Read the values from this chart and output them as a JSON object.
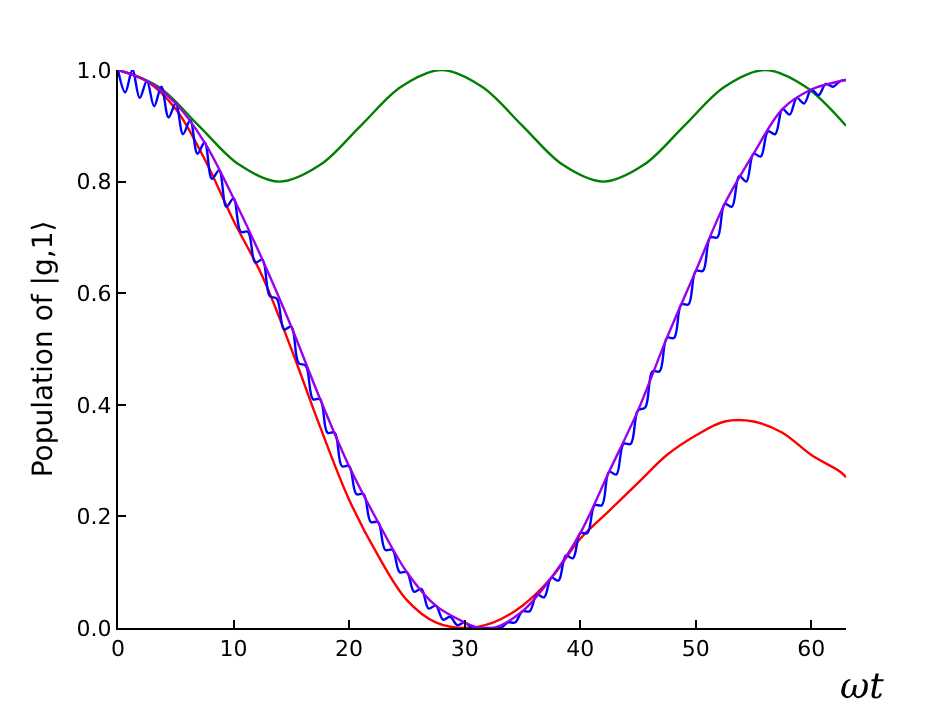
{
  "chart_data": {
    "type": "line",
    "xlabel": "ωt",
    "ylabel": "Population of |g,1⟩",
    "xlim": [
      0,
      63
    ],
    "ylim": [
      0,
      1
    ],
    "xticks": [
      0,
      10,
      20,
      30,
      40,
      50,
      60
    ],
    "yticks": [
      {
        "value": 0,
        "label": "0.0"
      },
      {
        "value": 0.2,
        "label": "0.2"
      },
      {
        "value": 0.4,
        "label": "0.4"
      },
      {
        "value": 0.6,
        "label": "0.6"
      },
      {
        "value": 0.8,
        "label": "0.8"
      },
      {
        "value": 1,
        "label": "1.0"
      }
    ],
    "grid": false,
    "marker": "none",
    "line_style": "solid",
    "series": [
      {
        "color": "#008000",
        "x": [
          0,
          3.5,
          7,
          10.5,
          14,
          17.5,
          21,
          24.5,
          28,
          31.5,
          35,
          38.5,
          42,
          45.5,
          49,
          52.5,
          56,
          59.5,
          63
        ],
        "values": [
          1.0,
          0.97,
          0.9,
          0.83,
          0.8,
          0.83,
          0.9,
          0.97,
          1.0,
          0.97,
          0.9,
          0.83,
          0.8,
          0.83,
          0.9,
          0.97,
          1.0,
          0.97,
          0.9
        ]
      },
      {
        "color": "#ff0000",
        "x": [
          0,
          2.5,
          5,
          7.5,
          10,
          12.5,
          15,
          17.5,
          20,
          22.5,
          25,
          27.5,
          30,
          32.5,
          35,
          37.5,
          40,
          42.5,
          45,
          47.5,
          50,
          52.5,
          55,
          57.5,
          60,
          62.5,
          63
        ],
        "values": [
          1.0,
          0.98,
          0.93,
          0.84,
          0.73,
          0.63,
          0.5,
          0.36,
          0.23,
          0.13,
          0.05,
          0.01,
          0.0,
          0.01,
          0.04,
          0.09,
          0.16,
          0.21,
          0.26,
          0.31,
          0.345,
          0.37,
          0.37,
          0.35,
          0.31,
          0.28,
          0.27
        ]
      },
      {
        "color": "#0000ff",
        "x": [
          0,
          0.625,
          1.25,
          1.875,
          2.5,
          3.125,
          3.75,
          4.375,
          5,
          5.625,
          6.25,
          6.875,
          7.5,
          8.125,
          8.75,
          9.375,
          10,
          10.625,
          11.25,
          11.875,
          12.5,
          13.125,
          13.75,
          14.375,
          15,
          15.625,
          16.25,
          16.875,
          17.5,
          18.125,
          18.75,
          19.375,
          20,
          20.625,
          21.25,
          21.875,
          22.5,
          23.125,
          23.75,
          24.375,
          25,
          25.625,
          26.25,
          26.875,
          27.5,
          28.125,
          28.75,
          29.375,
          30,
          30.625,
          31.25,
          31.875,
          32.5,
          33.125,
          33.75,
          34.375,
          35,
          35.625,
          36.25,
          36.875,
          37.5,
          38.125,
          38.75,
          39.375,
          40,
          40.625,
          41.25,
          41.875,
          42.5,
          43.125,
          43.75,
          44.375,
          45,
          45.625,
          46.25,
          46.875,
          47.5,
          48.125,
          48.75,
          49.375,
          50,
          50.625,
          51.25,
          51.875,
          52.5,
          53.125,
          53.75,
          54.375,
          55,
          55.625,
          56.25,
          56.875,
          57.5,
          58.125,
          58.75,
          59.375,
          60,
          60.625,
          61.25,
          61.875,
          62.5,
          63
        ],
        "values": [
          1.0,
          0.96,
          1.0,
          0.95,
          0.98,
          0.935,
          0.97,
          0.915,
          0.94,
          0.885,
          0.91,
          0.85,
          0.87,
          0.805,
          0.82,
          0.755,
          0.77,
          0.71,
          0.71,
          0.655,
          0.66,
          0.595,
          0.59,
          0.535,
          0.54,
          0.475,
          0.47,
          0.41,
          0.41,
          0.35,
          0.35,
          0.29,
          0.29,
          0.24,
          0.24,
          0.19,
          0.19,
          0.14,
          0.14,
          0.1,
          0.1,
          0.065,
          0.07,
          0.035,
          0.04,
          0.015,
          0.02,
          0.005,
          0.01,
          0.0,
          0.0,
          0.0,
          0.0,
          0.0,
          0.01,
          0.01,
          0.03,
          0.03,
          0.06,
          0.055,
          0.09,
          0.085,
          0.13,
          0.125,
          0.17,
          0.17,
          0.22,
          0.22,
          0.28,
          0.275,
          0.33,
          0.33,
          0.39,
          0.395,
          0.46,
          0.46,
          0.52,
          0.52,
          0.58,
          0.58,
          0.64,
          0.64,
          0.7,
          0.7,
          0.76,
          0.755,
          0.81,
          0.8,
          0.85,
          0.845,
          0.89,
          0.885,
          0.93,
          0.92,
          0.95,
          0.94,
          0.965,
          0.955,
          0.975,
          0.97,
          0.98,
          0.982
        ]
      },
      {
        "color": "#9900ee",
        "x": [
          0,
          2.5,
          5,
          7.5,
          10,
          12.5,
          15,
          17.5,
          20,
          22.5,
          25,
          27.5,
          30,
          31.25,
          32.5,
          35,
          37.5,
          40,
          42.5,
          45,
          47.5,
          50,
          52.5,
          55,
          57.5,
          60,
          62.5,
          63
        ],
        "values": [
          1.0,
          0.98,
          0.94,
          0.87,
          0.77,
          0.66,
          0.54,
          0.41,
          0.29,
          0.19,
          0.1,
          0.04,
          0.01,
          0.0,
          0.0,
          0.03,
          0.09,
          0.17,
          0.28,
          0.39,
          0.52,
          0.64,
          0.76,
          0.85,
          0.93,
          0.965,
          0.98,
          0.982
        ]
      }
    ]
  }
}
